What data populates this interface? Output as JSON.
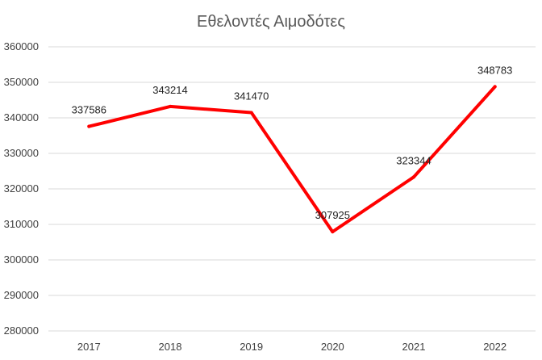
{
  "chart_data": {
    "type": "line",
    "title": "Εθελοντές Αιμοδότες",
    "xlabel": "",
    "ylabel": "",
    "categories": [
      "2017",
      "2018",
      "2019",
      "2020",
      "2021",
      "2022"
    ],
    "series": [
      {
        "values": [
          337586,
          343214,
          341470,
          307925,
          323344,
          348783
        ],
        "color": "#ff0000"
      }
    ],
    "data_labels": [
      "337586",
      "343214",
      "341470",
      "307925",
      "323344",
      "348783"
    ],
    "yticks": [
      "280000",
      "290000",
      "300000",
      "310000",
      "320000",
      "330000",
      "340000",
      "350000",
      "360000"
    ],
    "ylim": [
      280000,
      360000
    ],
    "grid": true,
    "legend": "none"
  }
}
